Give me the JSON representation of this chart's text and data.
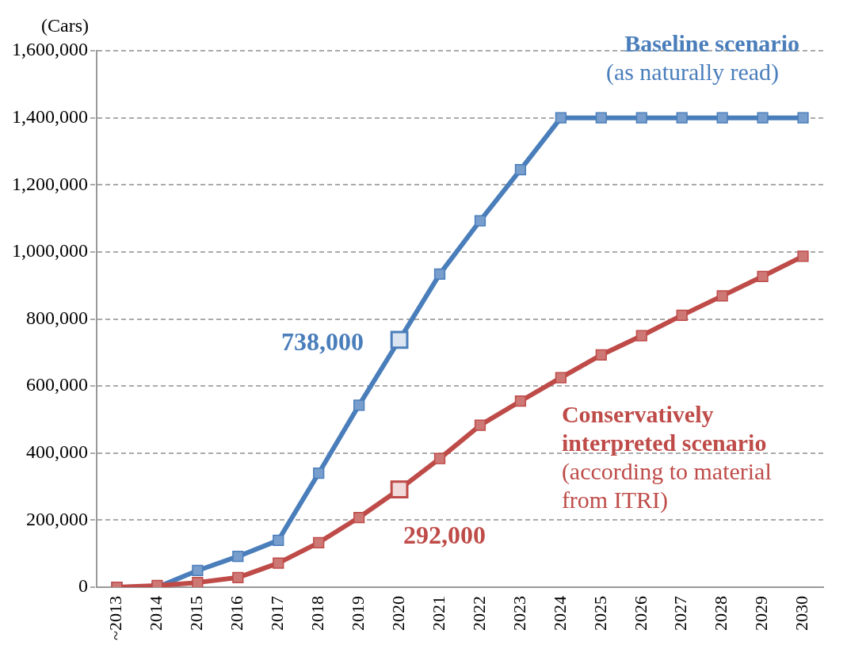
{
  "chart_data": {
    "type": "line",
    "ylabel": "(Cars)",
    "categories": [
      "~2013",
      "2014",
      "2015",
      "2016",
      "2017",
      "2018",
      "2019",
      "2020",
      "2021",
      "2022",
      "2023",
      "2024",
      "2025",
      "2026",
      "2027",
      "2028",
      "2029",
      "2030"
    ],
    "ylim": [
      0,
      1600000
    ],
    "yticks": [
      0,
      {
        "value": 200000,
        "label": "200,000"
      },
      {
        "value": 400000,
        "label": "400,000"
      },
      {
        "value": 600000,
        "label": "600,000"
      },
      {
        "value": 800000,
        "label": "800,000"
      },
      {
        "value": 1000000,
        "label": "1,000,000"
      },
      {
        "value": 1200000,
        "label": "1,200,000"
      },
      {
        "value": 1400000,
        "label": "1,400,000"
      },
      {
        "value": 1600000,
        "label": "1,600,000"
      }
    ],
    "grid": "y",
    "marker": "square",
    "line_style": "solid",
    "legend": false,
    "series": [
      {
        "name": "Baseline scenario",
        "color": "#4a7ebb",
        "values": [
          0,
          0,
          50000,
          92000,
          140000,
          340000,
          543000,
          738000,
          934000,
          1093000,
          1245000,
          1400000,
          1400000,
          1400000,
          1400000,
          1400000,
          1400000,
          1400000
        ],
        "value_labels": [
          null,
          null,
          null,
          null,
          null,
          null,
          null,
          "738,000",
          null,
          null,
          null,
          null,
          null,
          null,
          null,
          null,
          null,
          null
        ]
      },
      {
        "name": "Conservatively interpreted scenario",
        "color": "#be4b48",
        "values": [
          0,
          5000,
          14000,
          29000,
          72000,
          133000,
          208000,
          292000,
          384000,
          483000,
          555000,
          625000,
          693000,
          750000,
          811000,
          869000,
          927000,
          987000
        ],
        "value_labels": [
          null,
          null,
          null,
          null,
          null,
          null,
          null,
          "292,000",
          null,
          null,
          null,
          null,
          null,
          null,
          null,
          null,
          null,
          null
        ]
      }
    ],
    "annotations": [
      "(as naturally read)",
      "(according to material from ITRI)"
    ]
  }
}
